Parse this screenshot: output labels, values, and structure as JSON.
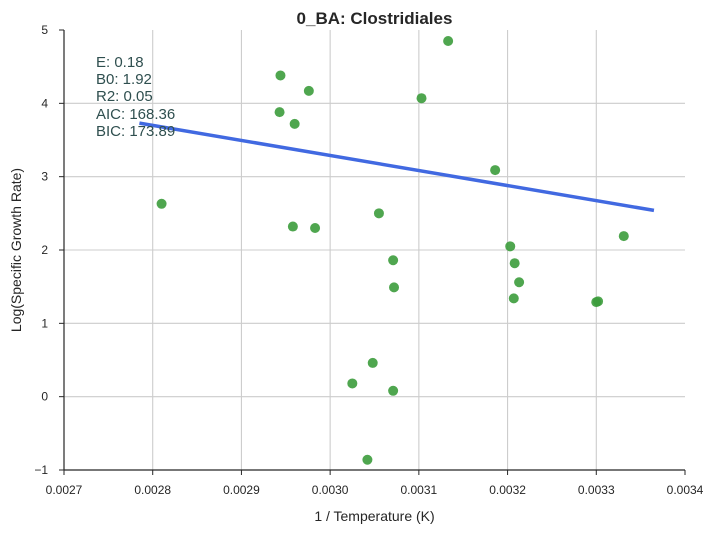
{
  "chart_data": {
    "type": "scatter",
    "title": "0_BA: Clostridiales",
    "xlabel": "1 / Temperature (K)",
    "ylabel": "Log(Specific Growth Rate)",
    "xlim": [
      0.0027,
      0.0034
    ],
    "ylim": [
      -1,
      5
    ],
    "grid": true,
    "x_ticks": [
      0.0027,
      0.0028,
      0.0029,
      0.003,
      0.0031,
      0.0032,
      0.0033,
      0.0034
    ],
    "x_tick_labels": [
      "0.0027",
      "0.0028",
      "0.0029",
      "0.0030",
      "0.0031",
      "0.0032",
      "0.0033",
      "0.0034"
    ],
    "y_ticks": [
      -1,
      0,
      1,
      2,
      3,
      4,
      5
    ],
    "y_tick_labels": [
      "−1",
      "0",
      "1",
      "2",
      "3",
      "4",
      "5"
    ],
    "series": [
      {
        "type": "scatter",
        "color": "#3c9c3c",
        "x": [
          0.00281,
          0.002944,
          0.002976,
          0.002943,
          0.00296,
          0.002958,
          0.002983,
          0.003025,
          0.003048,
          0.003055,
          0.003071,
          0.003072,
          0.003071,
          0.003042,
          0.003103,
          0.003133,
          0.003186,
          0.003203,
          0.003208,
          0.003213,
          0.003207,
          0.0033,
          0.003302,
          0.003331
        ],
        "y": [
          2.63,
          4.38,
          4.17,
          3.88,
          3.72,
          2.32,
          2.3,
          0.18,
          0.46,
          2.5,
          1.86,
          1.49,
          0.08,
          -0.86,
          4.07,
          4.85,
          3.09,
          2.05,
          1.82,
          1.56,
          1.34,
          1.29,
          1.3,
          2.19
        ]
      },
      {
        "type": "line",
        "color": "#4169e1",
        "x": [
          0.002785,
          0.003365
        ],
        "y": [
          3.73,
          2.54
        ]
      }
    ],
    "annotations": [
      "E:  0.18",
      "B0:  1.92",
      "R2:  0.05",
      "AIC: 168.36",
      "BIC: 173.89"
    ]
  }
}
